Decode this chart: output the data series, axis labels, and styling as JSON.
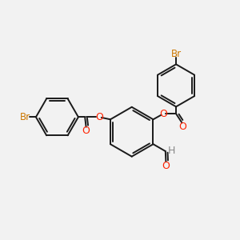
{
  "background_color": "#f2f2f2",
  "bond_color": "#1a1a1a",
  "oxygen_color": "#ff2200",
  "bromine_color": "#cc7700",
  "hydrogen_color": "#888888",
  "line_width": 1.4,
  "figsize": [
    3.0,
    3.0
  ],
  "dpi": 100,
  "xlim": [
    0,
    10
  ],
  "ylim": [
    0,
    10
  ]
}
